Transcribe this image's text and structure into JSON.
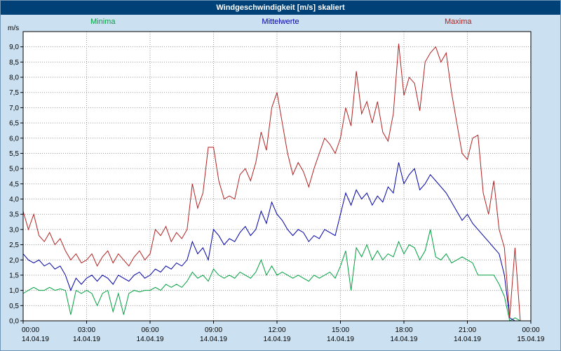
{
  "title_bar": {
    "title": "Windgeschwindigkeit [m/s] skaliert"
  },
  "legend": {
    "minima": "Minima",
    "mittelwerte": "Mittelwerte",
    "maxima": "Maxima"
  },
  "axis": {
    "unit_label": "m/s"
  },
  "colors": {
    "background": "#cbe1f1",
    "title_bar": "#004178",
    "minima": "#00a040",
    "mittelwerte": "#0000a8",
    "maxima": "#b22222",
    "grid": "#9a9a9a",
    "plot_background": "#ffffff",
    "plot_border": "#000000"
  },
  "chart_data": {
    "type": "line",
    "title": "Windgeschwindigkeit [m/s] skaliert",
    "ylabel": "m/s",
    "xlabel": "",
    "ylim": [
      0,
      9.5
    ],
    "x_range_hours": [
      0,
      24
    ],
    "x_step_hours": 0.25,
    "grid": true,
    "legend_position": "top",
    "y_ticks": [
      "0,0",
      "0,5",
      "1,0",
      "1,5",
      "2,0",
      "2,5",
      "3,0",
      "3,5",
      "4,0",
      "4,5",
      "5,0",
      "5,5",
      "6,0",
      "6,5",
      "7,0",
      "7,5",
      "8,0",
      "8,5",
      "9,0"
    ],
    "x_ticks": [
      {
        "time": "00:00",
        "date": "14.04.19"
      },
      {
        "time": "03:00",
        "date": "14.04.19"
      },
      {
        "time": "06:00",
        "date": "14.04.19"
      },
      {
        "time": "09:00",
        "date": "14.04.19"
      },
      {
        "time": "12:00",
        "date": "14.04.19"
      },
      {
        "time": "15:00",
        "date": "14.04.19"
      },
      {
        "time": "18:00",
        "date": "14.04.19"
      },
      {
        "time": "21:00",
        "date": "14.04.19"
      },
      {
        "time": "00:00",
        "date": "15.04.19"
      }
    ],
    "series": [
      {
        "name": "Minima",
        "color": "#00a040",
        "values": [
          0.9,
          1.0,
          1.1,
          1.0,
          1.0,
          1.1,
          1.0,
          1.05,
          1.0,
          0.2,
          1.0,
          0.9,
          1.0,
          0.9,
          0.5,
          0.9,
          1.0,
          0.3,
          0.9,
          0.2,
          0.9,
          1.0,
          0.95,
          1.0,
          1.0,
          1.1,
          1.0,
          1.2,
          1.1,
          1.2,
          1.1,
          1.3,
          1.6,
          1.4,
          1.5,
          1.3,
          1.7,
          1.5,
          1.4,
          1.5,
          1.4,
          1.6,
          1.5,
          1.4,
          1.6,
          2.0,
          1.5,
          1.8,
          1.5,
          1.6,
          1.5,
          1.4,
          1.5,
          1.4,
          1.3,
          1.5,
          1.4,
          1.5,
          1.6,
          1.4,
          1.8,
          2.3,
          1.0,
          2.4,
          2.1,
          2.5,
          2.0,
          2.3,
          2.0,
          2.2,
          2.1,
          2.6,
          2.2,
          2.5,
          2.4,
          2.0,
          2.3,
          3.0,
          2.1,
          2.0,
          2.2,
          1.9,
          2.0,
          2.1,
          2.0,
          1.9,
          1.5,
          1.5,
          1.5,
          1.5,
          1.2,
          0.8,
          0.0,
          0.1,
          0.0,
          0.0,
          0.0
        ]
      },
      {
        "name": "Mittelwerte",
        "color": "#0000a8",
        "values": [
          2.2,
          2.0,
          1.9,
          2.0,
          1.8,
          1.9,
          1.7,
          1.8,
          1.5,
          1.0,
          1.4,
          1.2,
          1.4,
          1.5,
          1.3,
          1.5,
          1.4,
          1.2,
          1.5,
          1.4,
          1.3,
          1.5,
          1.6,
          1.4,
          1.5,
          1.7,
          1.6,
          1.8,
          1.7,
          1.9,
          1.8,
          2.0,
          2.6,
          2.2,
          2.4,
          2.0,
          3.0,
          2.8,
          2.5,
          2.7,
          2.6,
          2.9,
          3.1,
          2.8,
          3.0,
          3.6,
          3.2,
          3.9,
          3.5,
          3.3,
          3.0,
          2.8,
          3.0,
          2.9,
          2.6,
          2.8,
          2.7,
          3.0,
          2.9,
          2.8,
          3.5,
          4.2,
          3.8,
          4.3,
          4.0,
          4.2,
          3.8,
          4.1,
          3.9,
          4.4,
          4.2,
          5.2,
          4.5,
          4.8,
          5.0,
          4.3,
          4.5,
          4.8,
          4.6,
          4.4,
          4.2,
          3.9,
          3.6,
          3.3,
          3.5,
          3.2,
          3.0,
          2.8,
          2.6,
          2.4,
          2.2,
          1.5,
          0.1,
          0.0,
          0.0,
          0.0,
          0.0
        ]
      },
      {
        "name": "Maxima",
        "color": "#b22222",
        "values": [
          3.6,
          3.0,
          3.5,
          2.8,
          2.6,
          2.9,
          2.5,
          2.7,
          2.3,
          2.0,
          2.2,
          1.9,
          2.0,
          2.2,
          1.8,
          2.1,
          2.3,
          1.9,
          2.2,
          2.0,
          1.8,
          2.1,
          2.3,
          2.0,
          2.2,
          3.0,
          2.8,
          3.1,
          2.6,
          2.9,
          2.7,
          3.0,
          4.5,
          3.7,
          4.2,
          5.7,
          5.7,
          4.6,
          4.0,
          4.1,
          4.0,
          4.8,
          5.0,
          4.6,
          5.2,
          6.2,
          5.6,
          7.0,
          7.5,
          6.5,
          5.5,
          4.8,
          5.2,
          4.9,
          4.4,
          5.0,
          5.5,
          6.0,
          5.8,
          5.5,
          6.0,
          7.0,
          6.4,
          8.2,
          6.8,
          7.2,
          6.5,
          7.2,
          6.2,
          5.9,
          6.8,
          9.1,
          7.4,
          8.0,
          7.8,
          6.9,
          8.5,
          8.8,
          9.0,
          8.5,
          8.8,
          7.5,
          6.5,
          5.5,
          5.3,
          6.0,
          6.1,
          4.2,
          3.5,
          4.6,
          3.0,
          2.4,
          0.1,
          2.4,
          0.0,
          0.0,
          0.0
        ]
      }
    ]
  }
}
